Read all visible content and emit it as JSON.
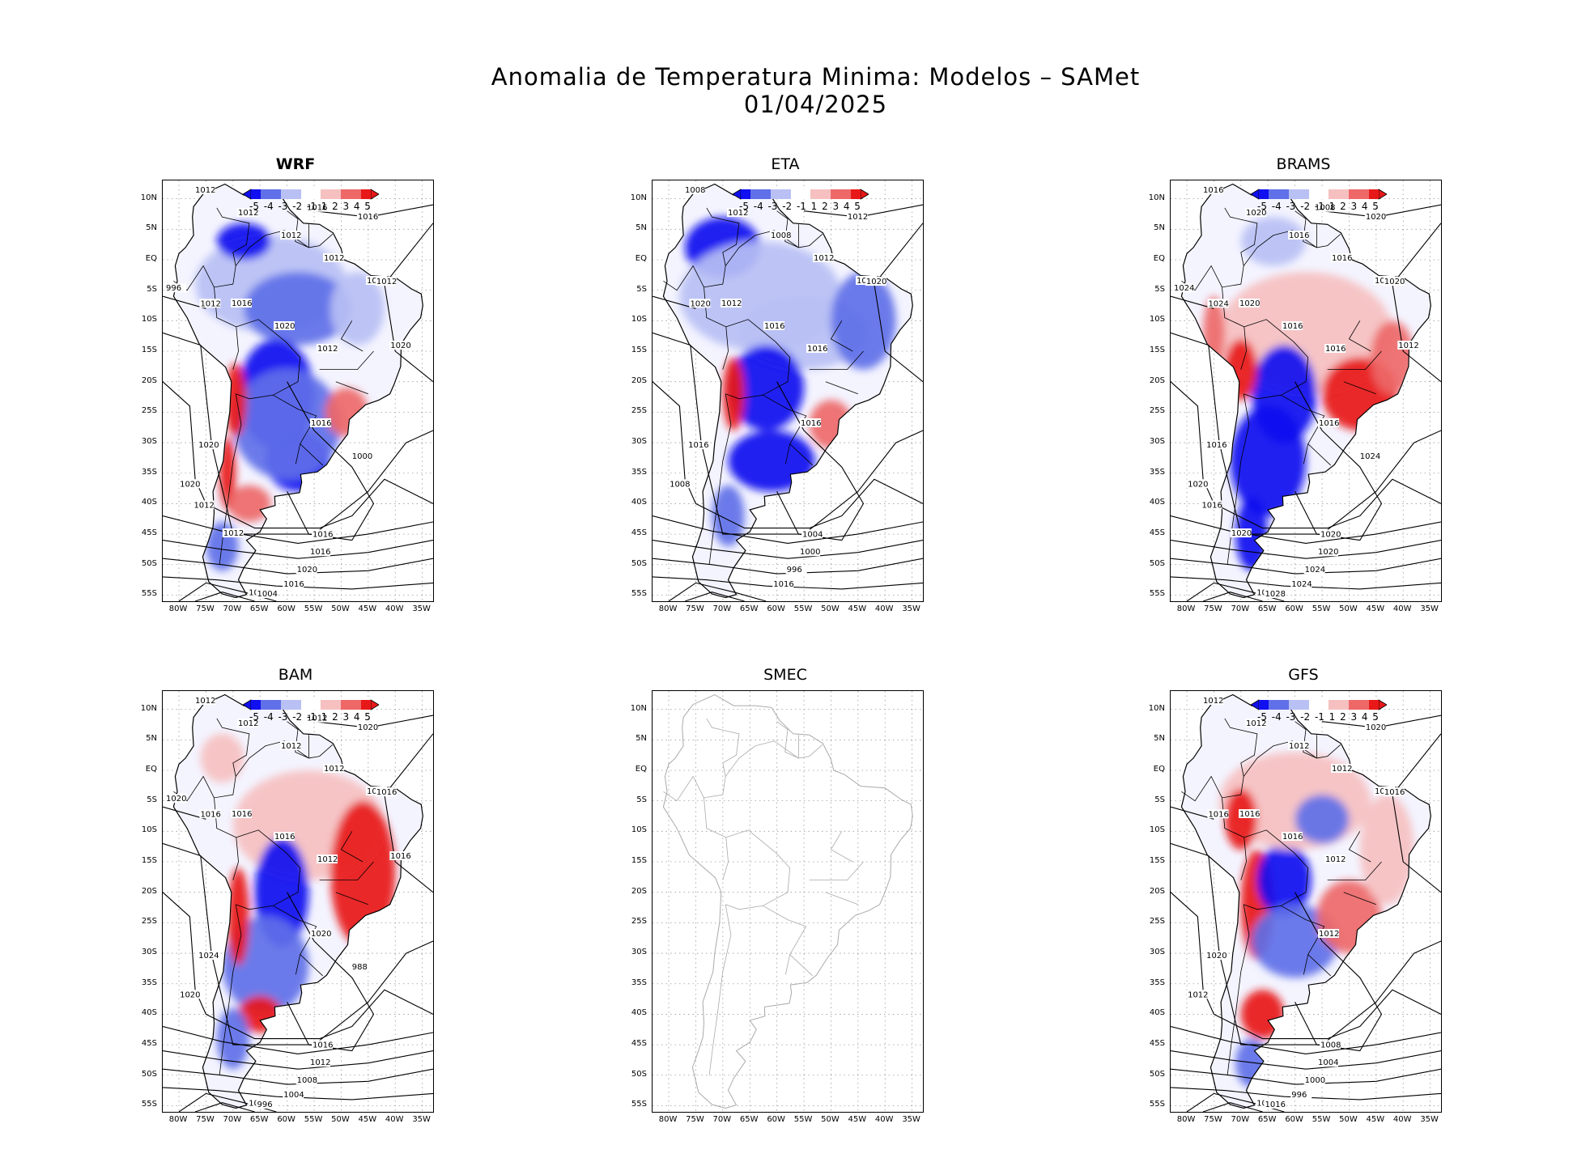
{
  "figure": {
    "title_line1": "Anomalia de Temperatura Minima: Modelos – SAMet",
    "title_line2": "01/04/2025"
  },
  "colors": {
    "strong_blue": "#1010f0",
    "mid_blue": "#6070e8",
    "light_blue": "#b8c0f4",
    "white": "#ffffff",
    "light_red": "#f6c0c0",
    "mid_red": "#ee6868",
    "strong_red": "#e81818",
    "gray_outline": "#aaaaaa"
  },
  "colorbar": {
    "labels": [
      "-5",
      "-4",
      "-3",
      "-2",
      "-1",
      "1",
      "2",
      "3",
      "4",
      "5"
    ]
  },
  "axes": {
    "y_ticks": [
      "10N",
      "5N",
      "EQ",
      "5S",
      "10S",
      "15S",
      "20S",
      "25S",
      "30S",
      "35S",
      "40S",
      "45S",
      "50S",
      "55S"
    ],
    "x_ticks": [
      "80W",
      "75W",
      "70W",
      "65W",
      "60W",
      "55W",
      "50W",
      "45W",
      "40W",
      "35W"
    ]
  },
  "panels": [
    {
      "name": "WRF",
      "has_data": true,
      "pattern": "wrf",
      "isobar_labels": [
        "1012",
        "1012",
        "1012",
        "1012",
        "1012",
        "1016",
        "1020",
        "1012",
        "1016",
        "1012",
        "1012",
        "1016",
        "1020",
        "1020",
        "1016",
        "1016",
        "1020",
        "1016",
        "1008",
        "1004",
        "1000",
        "996",
        "1020",
        "1016",
        "1012",
        "1012"
      ]
    },
    {
      "name": "ETA",
      "has_data": true,
      "pattern": "eta",
      "isobar_labels": [
        "1008",
        "1012",
        "1008",
        "1012",
        "1012",
        "1012",
        "1016",
        "1016",
        "1016",
        "1020",
        "1020",
        "1012",
        "1016",
        "1008",
        "1004",
        "1000",
        "996",
        "1016"
      ]
    },
    {
      "name": "BRAMS",
      "has_data": true,
      "pattern": "brams",
      "isobar_labels": [
        "1016",
        "1020",
        "1016",
        "1016",
        "1016",
        "1020",
        "1016",
        "1016",
        "1016",
        "1024",
        "1020",
        "1020",
        "1016",
        "1020",
        "1020",
        "1020",
        "1024",
        "1024",
        "1028",
        "1028",
        "1024",
        "1024",
        "1012",
        "1008",
        "1020",
        "1016"
      ]
    },
    {
      "name": "BAM",
      "has_data": true,
      "pattern": "bam",
      "isobar_labels": [
        "1012",
        "1012",
        "1012",
        "1012",
        "1012",
        "1016",
        "1016",
        "1012",
        "1020",
        "1016",
        "1016",
        "1020",
        "1024",
        "1020",
        "1016",
        "1012",
        "1008",
        "1004",
        "1000",
        "996",
        "988",
        "1020",
        "1016",
        "1012"
      ]
    },
    {
      "name": "SMEC",
      "has_data": false,
      "pattern": "none",
      "isobar_labels": []
    },
    {
      "name": "GFS",
      "has_data": true,
      "pattern": "gfs",
      "isobar_labels": [
        "1012",
        "1012",
        "1012",
        "1012",
        "1016",
        "1016",
        "1016",
        "1012",
        "1012",
        "1016",
        "1016",
        "1020",
        "1020",
        "1012",
        "1008",
        "1004",
        "1000",
        "996",
        "1020",
        "1016"
      ]
    }
  ]
}
